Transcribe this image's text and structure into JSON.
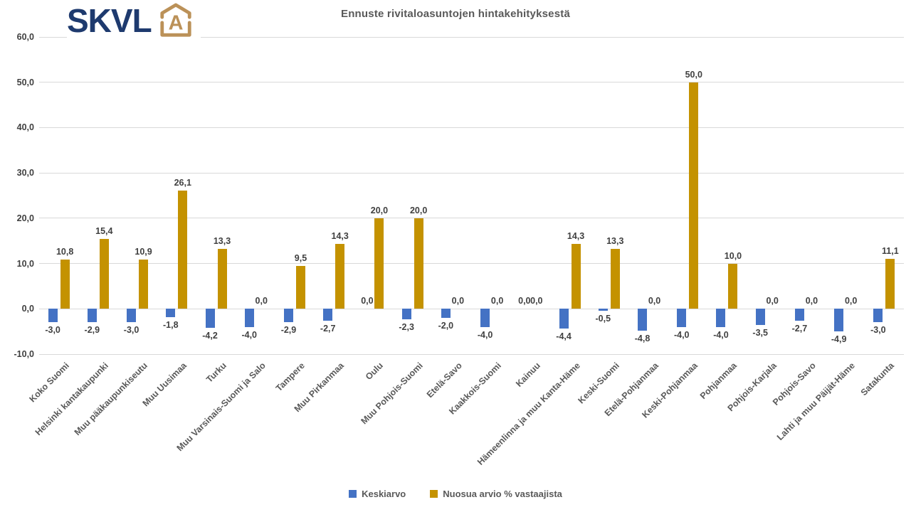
{
  "header": {
    "logo_text": "SKVL",
    "title": "Ennuste rivitaloasuntojen hintakehityksestä"
  },
  "colors": {
    "keskiarvo_blue": "#4472C4",
    "nousu_gold": "#C49200",
    "logo_navy": "#1e3a6e",
    "logo_gold": "#bb9158",
    "gridline": "#d9d9d9",
    "title_gray": "#595959"
  },
  "chart_data": {
    "type": "bar",
    "title": "Ennuste rivitaloasuntojen hintakehityksestä",
    "xlabel": "",
    "ylabel": "",
    "ylim": [
      -10,
      60
    ],
    "ytick_step": 10,
    "grid": true,
    "legend_position": "bottom",
    "decimal_separator": ",",
    "value_label_decimals": 1,
    "categories": [
      "Koko Suomi",
      "Helsinki kantakaupunki",
      "Muu pääkaupunkiseutu",
      "Muu Uusimaa",
      "Turku",
      "Muu Varsinais-Suomi ja Salo",
      "Tampere",
      "Muu Pirkanmaa",
      "Oulu",
      "Muu Pohjois-Suomi",
      "Etelä-Savo",
      "Kaakkois-Suomi",
      "Kainuu",
      "Hämeenlinna ja muu Kanta-Häme",
      "Keski-Suomi",
      "Etelä-Pohjanmaa",
      "Keski-Pohjanmaa",
      "Pohjanmaa",
      "Pohjois-Karjala",
      "Pohjois-Savo",
      "Lahti ja muu Päijät-Häme",
      "Satakunta"
    ],
    "series": [
      {
        "name": "Keskiarvo",
        "color": "#4472C4",
        "values": [
          -3.0,
          -2.9,
          -3.0,
          -1.8,
          -4.2,
          -4.0,
          -2.9,
          -2.7,
          0.0,
          -2.3,
          -2.0,
          -4.0,
          0.0,
          -4.4,
          -0.5,
          -4.8,
          -4.0,
          -4.0,
          -3.5,
          -2.7,
          -4.9,
          -3.0
        ]
      },
      {
        "name": "Nuosua arvio % vastaajista",
        "color": "#C49200",
        "values": [
          10.8,
          15.4,
          10.9,
          26.1,
          13.3,
          0.0,
          9.5,
          14.3,
          20.0,
          20.0,
          0.0,
          0.0,
          0.0,
          14.3,
          13.3,
          0.0,
          50.0,
          10.0,
          0.0,
          0.0,
          0.0,
          11.1
        ]
      }
    ],
    "yticks": [
      60,
      50,
      40,
      30,
      20,
      10,
      0,
      -10
    ]
  }
}
